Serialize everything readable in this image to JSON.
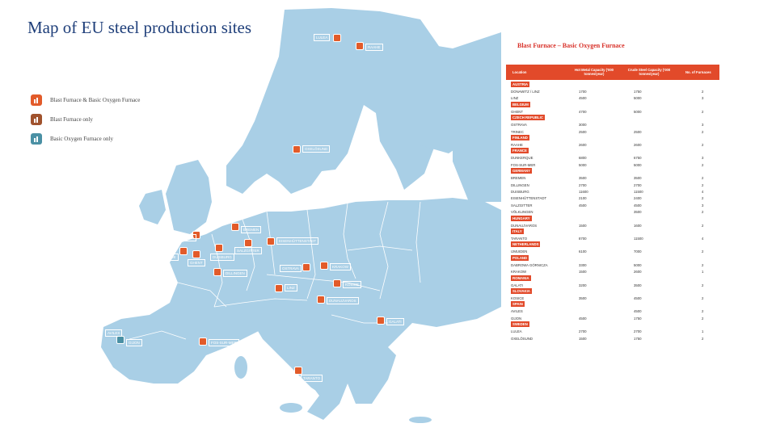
{
  "title": "Map of EU steel production sites",
  "legend": [
    {
      "label": "Blast Furnace & Basic Oxygen Furnace",
      "color": "#e25b2a",
      "icon": "furnace-icon"
    },
    {
      "label": "Blast Furnace only",
      "color": "#a0522d",
      "icon": "furnace-icon"
    },
    {
      "label": "Basic Oxygen Furnace only",
      "color": "#4a90a4",
      "icon": "furnace-icon"
    }
  ],
  "colors": {
    "land": "#a9cfe6",
    "sea": "#ffffff",
    "accent": "#e24a2a",
    "title": "#1f3f7a"
  },
  "sites": [
    {
      "name": "LULEA",
      "type": "bf_bof"
    },
    {
      "name": "RAAHE",
      "type": "bf_bof"
    },
    {
      "name": "OXELÖSUND",
      "type": "bf_bof"
    },
    {
      "name": "IJMUIDEN",
      "type": "bf_bof"
    },
    {
      "name": "BREMEN",
      "type": "bf_bof"
    },
    {
      "name": "EISENHÜTTENSTADT",
      "type": "bf_bof"
    },
    {
      "name": "DUNKERQUE",
      "type": "bf_bof"
    },
    {
      "name": "GHENT",
      "type": "bf_bof"
    },
    {
      "name": "DUISBURG",
      "type": "bf_bof"
    },
    {
      "name": "SALZGITTER",
      "type": "bf_bof"
    },
    {
      "name": "DILLINGEN",
      "type": "bf_bof"
    },
    {
      "name": "FOS-SUR-MER",
      "type": "bf_bof"
    },
    {
      "name": "GIJON",
      "type": "bof"
    },
    {
      "name": "AVILES",
      "type": "bof"
    },
    {
      "name": "LINZ",
      "type": "bf_bof"
    },
    {
      "name": "OSTRAVA",
      "type": "bf_bof"
    },
    {
      "name": "KRAKOW",
      "type": "bf_bof"
    },
    {
      "name": "KOSICE",
      "type": "bf_bof"
    },
    {
      "name": "DUNAUJVAROS",
      "type": "bf_bof"
    },
    {
      "name": "GALATI",
      "type": "bf_bof"
    },
    {
      "name": "TARANTO",
      "type": "bf_bof"
    }
  ],
  "table": {
    "title": "Blast Furnace – Basic Oxygen Furnace",
    "headers": [
      "Location",
      "Hot Metal Capacity ('000 tonnes/year)",
      "Crude Steel Capacity ('000 tonnes/year)",
      "No. of Furnaces"
    ],
    "sections": [
      {
        "country": "AUSTRIA",
        "rows": [
          [
            "DONAWITZ / LINZ",
            "1700",
            "1750",
            "2"
          ],
          [
            "LINZ",
            "4500",
            "5000",
            "3"
          ]
        ]
      },
      {
        "country": "BELGIUM",
        "rows": [
          [
            "GHENT",
            "4700",
            "5000",
            "2"
          ]
        ]
      },
      {
        "country": "CZECH REPUBLIC",
        "rows": [
          [
            "OSTRAVA",
            "3000",
            "",
            "3"
          ],
          [
            "TRINEC",
            "2500",
            "2500",
            "2"
          ]
        ]
      },
      {
        "country": "FINLAND",
        "rows": [
          [
            "RAAHE",
            "2600",
            "2600",
            "2"
          ]
        ]
      },
      {
        "country": "FRANCE",
        "rows": [
          [
            "DUNKERQUE",
            "6800",
            "6750",
            "3"
          ],
          [
            "FOS-SUR-MER",
            "5000",
            "5000",
            "2"
          ]
        ]
      },
      {
        "country": "GERMANY",
        "rows": [
          [
            "BREMEN",
            "3500",
            "3500",
            "2"
          ],
          [
            "DILLINGEN",
            "2700",
            "2700",
            "2"
          ],
          [
            "DUISBURG",
            "11600",
            "11500",
            "4"
          ],
          [
            "EISENHÜTTENSTADT",
            "2100",
            "2400",
            "2"
          ],
          [
            "SALZGITTER",
            "4500",
            "4500",
            "3"
          ],
          [
            "VÖLKLINGEN",
            "",
            "3500",
            "2"
          ]
        ]
      },
      {
        "country": "HUNGARY",
        "rows": [
          [
            "DUNAUJVAROS",
            "1500",
            "1600",
            "2"
          ]
        ]
      },
      {
        "country": "ITALY",
        "rows": [
          [
            "TARANTO",
            "8700",
            "11500",
            "4"
          ]
        ]
      },
      {
        "country": "NETHERLANDS",
        "rows": [
          [
            "IJMUIDEN",
            "6100",
            "7000",
            "2"
          ]
        ]
      },
      {
        "country": "POLAND",
        "rows": [
          [
            "DABROWA GÓRNICZA",
            "3300",
            "5000",
            "2"
          ],
          [
            "KRAKOW",
            "1500",
            "2600",
            "1"
          ]
        ]
      },
      {
        "country": "ROMANIA",
        "rows": [
          [
            "GALATI",
            "3200",
            "3500",
            "2"
          ]
        ]
      },
      {
        "country": "SLOVAKIA",
        "rows": [
          [
            "KOSICE",
            "3500",
            "4500",
            "2"
          ]
        ]
      },
      {
        "country": "SPAIN",
        "rows": [
          [
            "AVILES",
            "",
            "4500",
            "2"
          ],
          [
            "GIJON",
            "4500",
            "1750",
            "2"
          ]
        ]
      },
      {
        "country": "SWEDEN",
        "rows": [
          [
            "LULEA",
            "2700",
            "2700",
            "1"
          ],
          [
            "OXELÖSUND",
            "1500",
            "1750",
            "2"
          ]
        ]
      }
    ]
  }
}
